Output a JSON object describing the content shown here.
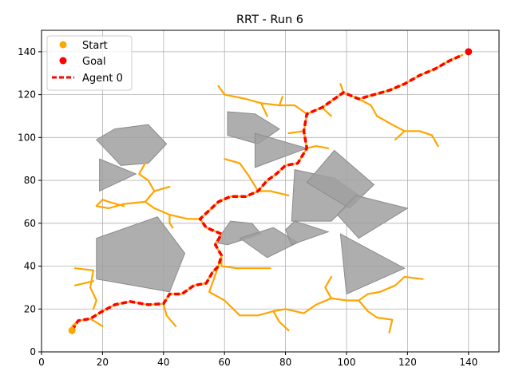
{
  "chart_data": {
    "type": "line",
    "title": "RRT - Run 6",
    "xlabel": "",
    "ylabel": "",
    "xlim": [
      0,
      150
    ],
    "ylim": [
      0,
      150
    ],
    "xticks": [
      0,
      20,
      40,
      60,
      80,
      100,
      120,
      140
    ],
    "yticks": [
      0,
      20,
      40,
      60,
      80,
      100,
      120,
      140
    ],
    "grid": true,
    "legend_placement": "top-left",
    "legend": [
      "Start",
      "Goal",
      "Agent 0"
    ],
    "colors": {
      "tree": "#FFA500",
      "path": "#FF0000",
      "obstacle": "#A0A0A0",
      "start": "#FFA500",
      "goal": "#FF0000",
      "grid": "#B0B0B0"
    },
    "start": [
      10,
      10
    ],
    "goal": [
      140,
      140
    ],
    "obstacles": [
      [
        [
          18,
          99
        ],
        [
          24,
          104
        ],
        [
          35,
          106
        ],
        [
          41,
          97
        ],
        [
          35,
          88
        ],
        [
          26,
          87
        ]
      ],
      [
        [
          19,
          90
        ],
        [
          19,
          75
        ],
        [
          31,
          83
        ]
      ],
      [
        [
          18,
          53
        ],
        [
          38,
          63
        ],
        [
          47,
          46
        ],
        [
          42,
          28
        ],
        [
          18,
          34
        ]
      ],
      [
        [
          61,
          112
        ],
        [
          61,
          101
        ],
        [
          71,
          97
        ],
        [
          78,
          104
        ],
        [
          70,
          111
        ]
      ],
      [
        [
          70,
          102
        ],
        [
          70,
          86
        ],
        [
          87,
          95
        ]
      ],
      [
        [
          83,
          85
        ],
        [
          82,
          61
        ],
        [
          95,
          61
        ],
        [
          104,
          73
        ],
        [
          96,
          81
        ]
      ],
      [
        [
          87,
          79
        ],
        [
          96,
          94
        ],
        [
          109,
          78
        ],
        [
          101,
          67
        ]
      ],
      [
        [
          103,
          73
        ],
        [
          120,
          67
        ],
        [
          104,
          53
        ],
        [
          97,
          64
        ]
      ],
      [
        [
          62,
          61
        ],
        [
          57,
          51
        ],
        [
          61,
          50
        ],
        [
          72,
          55
        ],
        [
          69,
          60
        ]
      ],
      [
        [
          65,
          53
        ],
        [
          76,
          58
        ],
        [
          84,
          51
        ],
        [
          74,
          44
        ]
      ],
      [
        [
          83,
          61
        ],
        [
          94,
          56
        ],
        [
          82,
          50
        ],
        [
          80,
          57
        ]
      ],
      [
        [
          98,
          55
        ],
        [
          119,
          39
        ],
        [
          100,
          27
        ]
      ]
    ],
    "tree_segments": [
      [
        [
          10,
          10
        ],
        [
          12,
          14.5
        ],
        [
          16,
          15.5
        ],
        [
          20,
          19
        ],
        [
          24,
          22
        ],
        [
          29,
          23.5
        ],
        [
          35,
          22
        ],
        [
          40,
          22.5
        ]
      ],
      [
        [
          40,
          22.5
        ],
        [
          42,
          27
        ],
        [
          46,
          27
        ],
        [
          50,
          31
        ],
        [
          54,
          32
        ],
        [
          56,
          37
        ],
        [
          58,
          40
        ],
        [
          59,
          45
        ],
        [
          57,
          50
        ],
        [
          59,
          55
        ],
        [
          54,
          58
        ],
        [
          52,
          62
        ],
        [
          55,
          66
        ],
        [
          58,
          70
        ],
        [
          62,
          72.5
        ],
        [
          67,
          72.5
        ],
        [
          71,
          75
        ],
        [
          74,
          80
        ],
        [
          77,
          83
        ],
        [
          80,
          87
        ],
        [
          84,
          88
        ],
        [
          87,
          95
        ],
        [
          86,
          103
        ],
        [
          87,
          111
        ],
        [
          92,
          114
        ],
        [
          96,
          118
        ],
        [
          99,
          121
        ],
        [
          104,
          118
        ],
        [
          109,
          120
        ],
        [
          114,
          122
        ],
        [
          119,
          125
        ],
        [
          124,
          129
        ],
        [
          129,
          132
        ],
        [
          134,
          136
        ],
        [
          138,
          138.5
        ]
      ],
      [
        [
          12,
          14.5
        ],
        [
          10,
          12
        ]
      ],
      [
        [
          16,
          15.5
        ],
        [
          20,
          12
        ]
      ],
      [
        [
          40,
          22.5
        ],
        [
          41,
          17
        ],
        [
          44,
          12
        ]
      ],
      [
        [
          58,
          40
        ],
        [
          55,
          28
        ]
      ],
      [
        [
          55,
          28
        ],
        [
          60,
          24
        ],
        [
          65,
          17
        ],
        [
          71,
          17
        ],
        [
          76,
          19
        ],
        [
          80,
          20
        ],
        [
          86,
          18
        ],
        [
          90,
          22
        ],
        [
          95,
          25
        ],
        [
          100,
          24
        ],
        [
          104,
          24
        ],
        [
          107,
          27
        ],
        [
          111,
          28
        ],
        [
          116,
          31
        ],
        [
          119,
          35
        ],
        [
          125,
          34
        ]
      ],
      [
        [
          104,
          24
        ],
        [
          107,
          19
        ],
        [
          110,
          16
        ],
        [
          115,
          15
        ],
        [
          114,
          9
        ]
      ],
      [
        [
          95,
          25
        ],
        [
          93,
          30
        ],
        [
          95,
          35
        ]
      ],
      [
        [
          76,
          19
        ],
        [
          78,
          14
        ],
        [
          81,
          10
        ]
      ],
      [
        [
          18,
          24
        ],
        [
          17,
          20
        ]
      ],
      [
        [
          18,
          24
        ],
        [
          16,
          30
        ],
        [
          17,
          38
        ],
        [
          11,
          39
        ]
      ],
      [
        [
          17,
          33
        ],
        [
          11,
          31
        ]
      ],
      [
        [
          59,
          45
        ],
        [
          59,
          40
        ],
        [
          64,
          39
        ],
        [
          69,
          39
        ],
        [
          75,
          39
        ]
      ],
      [
        [
          52,
          62
        ],
        [
          48,
          62
        ],
        [
          42,
          64
        ],
        [
          37,
          67
        ],
        [
          34,
          70
        ],
        [
          27,
          69
        ],
        [
          22,
          67
        ],
        [
          18,
          68
        ],
        [
          20,
          71
        ],
        [
          22,
          70
        ],
        [
          27,
          68
        ]
      ],
      [
        [
          34,
          70
        ],
        [
          37,
          75
        ],
        [
          35,
          80
        ],
        [
          32,
          83
        ],
        [
          34,
          88
        ]
      ],
      [
        [
          37,
          75
        ],
        [
          42,
          77
        ]
      ],
      [
        [
          42,
          64
        ],
        [
          42,
          60
        ],
        [
          43,
          58
        ]
      ],
      [
        [
          71,
          75
        ],
        [
          75,
          75
        ],
        [
          81,
          73
        ]
      ],
      [
        [
          71,
          75
        ],
        [
          68,
          82
        ],
        [
          65,
          88
        ],
        [
          60,
          90
        ]
      ],
      [
        [
          62,
          72.5
        ],
        [
          58,
          70
        ]
      ],
      [
        [
          87,
          95
        ],
        [
          90,
          96
        ],
        [
          94,
          95
        ]
      ],
      [
        [
          86,
          103
        ],
        [
          81,
          102
        ]
      ],
      [
        [
          87,
          111
        ],
        [
          83,
          115
        ],
        [
          78,
          115
        ],
        [
          72,
          116
        ],
        [
          67,
          118
        ],
        [
          60,
          120
        ],
        [
          58,
          124
        ]
      ],
      [
        [
          78,
          115
        ],
        [
          79,
          119
        ]
      ],
      [
        [
          72,
          116
        ],
        [
          74,
          110
        ]
      ],
      [
        [
          92,
          114
        ],
        [
          95,
          110
        ]
      ],
      [
        [
          99,
          121
        ],
        [
          98,
          125
        ]
      ],
      [
        [
          104,
          118
        ],
        [
          108,
          115
        ],
        [
          110,
          110
        ],
        [
          115,
          106
        ],
        [
          119,
          103
        ],
        [
          124,
          103
        ],
        [
          128,
          101
        ],
        [
          130,
          96
        ]
      ],
      [
        [
          119,
          103
        ],
        [
          116,
          99
        ]
      ]
    ],
    "series": [
      {
        "name": "Agent 0",
        "x": [
          10,
          12,
          16,
          20,
          24,
          29,
          35,
          40,
          42,
          46,
          50,
          54,
          56,
          58,
          59,
          57,
          59,
          54,
          52,
          55,
          58,
          62,
          67,
          71,
          74,
          77,
          80,
          84,
          87,
          86,
          87,
          92,
          96,
          99,
          104,
          109,
          114,
          119,
          124,
          129,
          134,
          138
        ],
        "y": [
          10,
          14.5,
          15.5,
          19,
          22,
          23.5,
          22,
          22.5,
          27,
          27,
          31,
          32,
          37,
          40,
          45,
          50,
          55,
          58,
          62,
          66,
          70,
          72.5,
          72.5,
          75,
          80,
          83,
          87,
          88,
          95,
          103,
          111,
          114,
          118,
          121,
          118,
          120,
          122,
          125,
          129,
          132,
          136,
          138.5
        ]
      }
    ]
  }
}
